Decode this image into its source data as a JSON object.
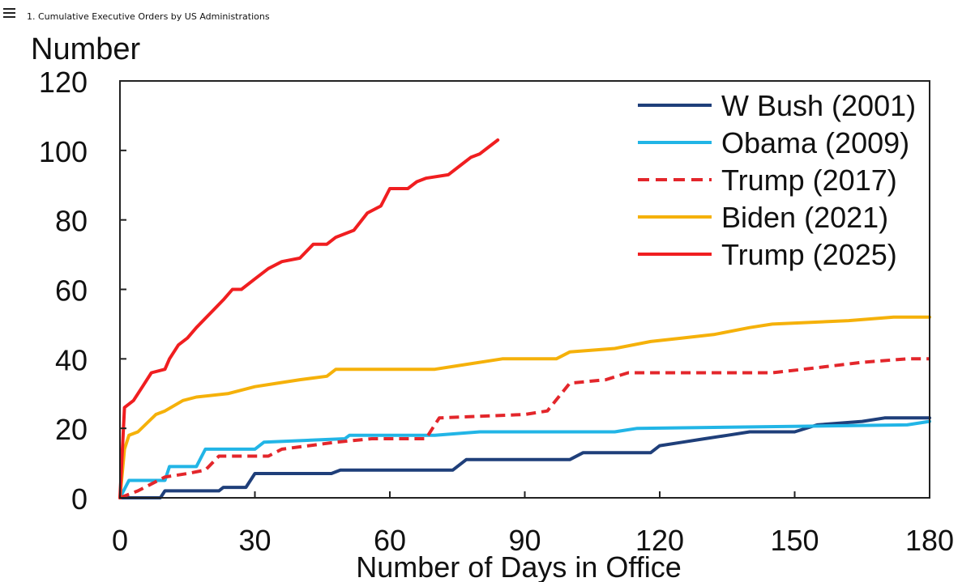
{
  "header": {
    "caption": "1. Cumulative Executive Orders by US Administrations"
  },
  "chart_data": {
    "type": "line",
    "xlabel": "Number of Days in Office",
    "ylabel": "Number",
    "xlim": [
      0,
      180
    ],
    "ylim": [
      0,
      120
    ],
    "xticks": [
      0,
      30,
      60,
      90,
      120,
      150,
      180
    ],
    "yticks": [
      0,
      20,
      40,
      60,
      80,
      100,
      120
    ],
    "grid": false,
    "legend_position": "top-right",
    "series": [
      {
        "name": "W Bush (2001)",
        "color": "#1f3f7a",
        "dash": false,
        "points": [
          [
            0,
            0
          ],
          [
            9,
            0
          ],
          [
            10,
            2
          ],
          [
            22,
            2
          ],
          [
            23,
            3
          ],
          [
            28,
            3
          ],
          [
            30,
            7
          ],
          [
            47,
            7
          ],
          [
            49,
            8
          ],
          [
            74,
            8
          ],
          [
            77,
            11
          ],
          [
            100,
            11
          ],
          [
            103,
            13
          ],
          [
            118,
            13
          ],
          [
            120,
            15
          ],
          [
            125,
            16
          ],
          [
            130,
            17
          ],
          [
            135,
            18
          ],
          [
            140,
            19
          ],
          [
            150,
            19
          ],
          [
            155,
            21
          ],
          [
            165,
            22
          ],
          [
            170,
            23
          ],
          [
            180,
            23
          ]
        ]
      },
      {
        "name": "Obama (2009)",
        "color": "#22b5e6",
        "dash": false,
        "points": [
          [
            0,
            0
          ],
          [
            2,
            5
          ],
          [
            10,
            5
          ],
          [
            11,
            9
          ],
          [
            17,
            9
          ],
          [
            19,
            14
          ],
          [
            30,
            14
          ],
          [
            32,
            16
          ],
          [
            50,
            17
          ],
          [
            51,
            18
          ],
          [
            70,
            18
          ],
          [
            80,
            19
          ],
          [
            110,
            19
          ],
          [
            115,
            20
          ],
          [
            175,
            21
          ],
          [
            180,
            22
          ]
        ]
      },
      {
        "name": "Trump (2017)",
        "color": "#e3262b",
        "dash": true,
        "points": [
          [
            0,
            0
          ],
          [
            4,
            2
          ],
          [
            10,
            6
          ],
          [
            15,
            7
          ],
          [
            19,
            8
          ],
          [
            22,
            12
          ],
          [
            33,
            12
          ],
          [
            36,
            14
          ],
          [
            42,
            15
          ],
          [
            48,
            16
          ],
          [
            56,
            17
          ],
          [
            68,
            17
          ],
          [
            71,
            23
          ],
          [
            90,
            24
          ],
          [
            95,
            25
          ],
          [
            100,
            33
          ],
          [
            108,
            34
          ],
          [
            113,
            36
          ],
          [
            145,
            36
          ],
          [
            152,
            37
          ],
          [
            165,
            39
          ],
          [
            175,
            40
          ],
          [
            180,
            40
          ]
        ]
      },
      {
        "name": "Biden (2021)",
        "color": "#f5b10a",
        "dash": false,
        "points": [
          [
            0,
            0
          ],
          [
            1,
            14
          ],
          [
            2,
            18
          ],
          [
            4,
            19
          ],
          [
            8,
            24
          ],
          [
            10,
            25
          ],
          [
            14,
            28
          ],
          [
            17,
            29
          ],
          [
            24,
            30
          ],
          [
            30,
            32
          ],
          [
            35,
            33
          ],
          [
            40,
            34
          ],
          [
            46,
            35
          ],
          [
            48,
            37
          ],
          [
            70,
            37
          ],
          [
            75,
            38
          ],
          [
            85,
            40
          ],
          [
            97,
            40
          ],
          [
            100,
            42
          ],
          [
            110,
            43
          ],
          [
            118,
            45
          ],
          [
            125,
            46
          ],
          [
            132,
            47
          ],
          [
            140,
            49
          ],
          [
            145,
            50
          ],
          [
            162,
            51
          ],
          [
            172,
            52
          ],
          [
            180,
            52
          ]
        ]
      },
      {
        "name": "Trump (2025)",
        "color": "#f01e20",
        "dash": false,
        "points": [
          [
            0,
            0
          ],
          [
            1,
            26
          ],
          [
            3,
            28
          ],
          [
            5,
            32
          ],
          [
            6,
            34
          ],
          [
            7,
            36
          ],
          [
            10,
            37
          ],
          [
            11,
            40
          ],
          [
            13,
            44
          ],
          [
            15,
            46
          ],
          [
            17,
            49
          ],
          [
            20,
            53
          ],
          [
            23,
            57
          ],
          [
            25,
            60
          ],
          [
            27,
            60
          ],
          [
            30,
            63
          ],
          [
            33,
            66
          ],
          [
            36,
            68
          ],
          [
            40,
            69
          ],
          [
            43,
            73
          ],
          [
            46,
            73
          ],
          [
            48,
            75
          ],
          [
            52,
            77
          ],
          [
            55,
            82
          ],
          [
            58,
            84
          ],
          [
            60,
            89
          ],
          [
            64,
            89
          ],
          [
            66,
            91
          ],
          [
            68,
            92
          ],
          [
            73,
            93
          ],
          [
            76,
            96
          ],
          [
            78,
            98
          ],
          [
            80,
            99
          ],
          [
            82,
            101
          ],
          [
            84,
            103
          ]
        ]
      }
    ]
  }
}
